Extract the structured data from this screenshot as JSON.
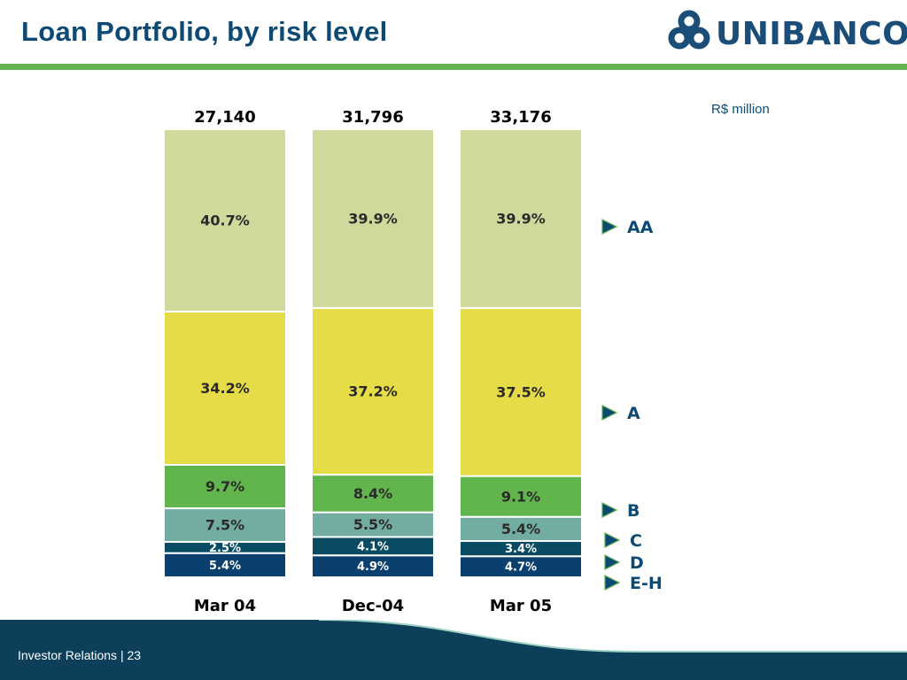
{
  "header": {
    "title": "Loan Portfolio, by risk level",
    "logo_text": "UNIBANCO"
  },
  "footer": {
    "text": "Investor Relations | 23"
  },
  "colors": {
    "AA": "#d1d89b",
    "A": "#e6dc48",
    "B": "#62b54d",
    "C": "#73aca1",
    "D": "#0a4b64",
    "E-H": "#0b3f6e",
    "title": "#0d4a73",
    "accent_green": "#62b34f",
    "footer": "#0d3f5a"
  },
  "chart_data": {
    "type": "bar",
    "stacked": true,
    "normalized": true,
    "unit_label": "R$ million",
    "categories": [
      "Mar 04",
      "Dec-04",
      "Mar 05"
    ],
    "totals": [
      "27,140",
      "31,796",
      "33,176"
    ],
    "series": [
      {
        "name": "E-H",
        "values": [
          5.4,
          4.9,
          4.7
        ],
        "labels": [
          "5.4%",
          "4.9%",
          "4.7%"
        ]
      },
      {
        "name": "D",
        "values": [
          2.5,
          4.1,
          3.4
        ],
        "labels": [
          "2.5%",
          "4.1%",
          "3.4%"
        ]
      },
      {
        "name": "C",
        "values": [
          7.5,
          5.5,
          5.4
        ],
        "labels": [
          "7.5%",
          "5.5%",
          "5.4%"
        ]
      },
      {
        "name": "B",
        "values": [
          9.7,
          8.4,
          9.1
        ],
        "labels": [
          "9.7%",
          "8.4%",
          "9.1%"
        ]
      },
      {
        "name": "A",
        "values": [
          34.2,
          37.2,
          37.5
        ],
        "labels": [
          "34.2%",
          "37.2%",
          "37.5%"
        ]
      },
      {
        "name": "AA",
        "values": [
          40.7,
          39.9,
          39.9
        ],
        "labels": [
          "40.7%",
          "39.9%",
          "39.9%"
        ]
      }
    ],
    "legend_order": [
      "AA",
      "A",
      "B",
      "C",
      "D",
      "E-H"
    ],
    "legend_position": "right"
  }
}
